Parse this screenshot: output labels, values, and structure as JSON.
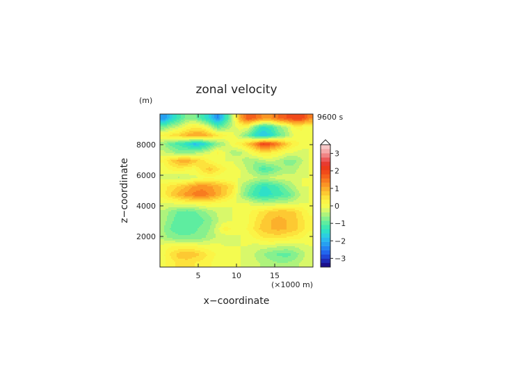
{
  "chart_data": {
    "type": "heatmap",
    "title": "zonal velocity",
    "xlabel": "x−coordinate",
    "ylabel": "z−coordinate",
    "x_unit": "(×1000 m)",
    "y_unit": "(m)",
    "time_label": "9600 s",
    "xlim": [
      0,
      20
    ],
    "ylim": [
      0,
      10000
    ],
    "x_ticks": [
      "5",
      "10",
      "15"
    ],
    "y_ticks": [
      "2000",
      "4000",
      "6000",
      "8000"
    ],
    "colorbar": {
      "ticks": [
        "−3",
        "−2",
        "−1",
        "0",
        "1",
        "2",
        "3"
      ],
      "levels": [
        -3.5,
        -3.25,
        -3,
        -2.75,
        -2.5,
        -2.25,
        -2,
        -1.75,
        -1.5,
        -1.25,
        -1,
        -0.75,
        -0.5,
        -0.25,
        0,
        0.25,
        0.5,
        0.75,
        1,
        1.25,
        1.5,
        1.75,
        2,
        2.25,
        2.5,
        2.75,
        3,
        3.25,
        3.5
      ],
      "colors": [
        "#1b0f8c",
        "#1e2ab4",
        "#1f47d8",
        "#2166ee",
        "#2384f2",
        "#26a0f0",
        "#2ab9ee",
        "#2ccfe0",
        "#2ee0c8",
        "#3fe8b0",
        "#5eeda0",
        "#86f08e",
        "#aef37c",
        "#d8f86a",
        "#f4fb50",
        "#fbf446",
        "#fde23c",
        "#fdc932",
        "#fcb02b",
        "#fb9524",
        "#f87b1f",
        "#f5611c",
        "#f14a1a",
        "#ec3a1a",
        "#e83a30",
        "#ec5a5a",
        "#f08484",
        "#f5aaaa",
        "#f8c8c8"
      ]
    },
    "grid": false,
    "legend": "right",
    "cell_size": [
      1,
      500
    ],
    "z_rows_top_to_bottom": [
      [
        -2.2,
        -1.6,
        -1.1,
        -0.6,
        -0.6,
        -1.1,
        -1.6,
        -2.3,
        -1.4,
        -0.3,
        1.2,
        2.0,
        1.8,
        1.4,
        1.4,
        1.8,
        2.0,
        2.2,
        2.2,
        1.6
      ],
      [
        -0.8,
        -0.4,
        -0.2,
        0.2,
        0.4,
        0.3,
        -0.2,
        -0.9,
        -0.6,
        -0.2,
        0.2,
        0.1,
        -0.8,
        -1.3,
        -1.1,
        -0.6,
        -0.3,
        0.3,
        0.3,
        0.1
      ],
      [
        0.4,
        0.6,
        0.8,
        1.1,
        1.3,
        1.3,
        1.0,
        0.6,
        0.3,
        0.1,
        -0.3,
        -0.8,
        -1.4,
        -1.8,
        -1.5,
        -0.9,
        -0.5,
        0.0,
        0.2,
        0.1
      ],
      [
        -0.5,
        -0.9,
        -1.1,
        -1.4,
        -1.8,
        -1.7,
        -1.1,
        -0.6,
        -0.3,
        0.2,
        0.4,
        0.9,
        1.5,
        2.3,
        2.0,
        1.5,
        0.9,
        0.4,
        0.2,
        0.0
      ],
      [
        -0.2,
        -0.4,
        -0.6,
        -0.6,
        -0.5,
        -0.3,
        -0.1,
        0.3,
        0.0,
        -0.4,
        -0.3,
        0.0,
        0.4,
        0.6,
        0.5,
        0.3,
        0.1,
        0.0,
        -0.1,
        0.0
      ],
      [
        0.3,
        0.8,
        1.1,
        1.2,
        0.9,
        0.6,
        0.3,
        0.1,
        0.0,
        0.0,
        -0.2,
        -0.4,
        -0.5,
        -0.3,
        -0.2,
        -0.3,
        -0.6,
        -0.6,
        -0.3,
        0.0
      ],
      [
        0.1,
        0.3,
        0.4,
        0.3,
        0.2,
        0.6,
        0.9,
        0.6,
        0.3,
        0.1,
        0.0,
        -0.3,
        -0.6,
        -1.1,
        -0.9,
        -0.6,
        -0.4,
        -0.4,
        -0.1,
        0.0
      ],
      [
        -0.1,
        -0.2,
        -0.3,
        -0.2,
        -0.1,
        0.1,
        0.2,
        0.1,
        0.0,
        0.0,
        0.0,
        -0.1,
        -0.2,
        -0.3,
        -0.2,
        -0.1,
        -0.1,
        -0.1,
        0.0,
        0.0
      ],
      [
        0.4,
        0.6,
        0.8,
        1.0,
        1.3,
        1.4,
        1.3,
        1.1,
        0.9,
        0.6,
        -0.2,
        -0.6,
        -1.0,
        -1.3,
        -1.2,
        -1.0,
        -0.6,
        -0.3,
        0.0,
        0.0
      ],
      [
        0.4,
        0.8,
        1.1,
        1.4,
        1.6,
        1.7,
        1.5,
        1.2,
        0.8,
        0.4,
        -0.3,
        -0.8,
        -1.2,
        -1.4,
        -1.3,
        -1.1,
        -1.0,
        -0.6,
        -0.2,
        0.0
      ],
      [
        0.0,
        0.0,
        0.1,
        0.2,
        0.2,
        0.3,
        0.3,
        0.2,
        0.1,
        0.0,
        0.0,
        0.0,
        -0.2,
        -0.3,
        -0.3,
        -0.2,
        -0.2,
        -0.1,
        0.0,
        0.0
      ],
      [
        -0.3,
        -0.6,
        -0.8,
        -0.9,
        -0.8,
        -0.6,
        -0.4,
        -0.2,
        -0.1,
        0.0,
        0.0,
        0.2,
        0.4,
        0.6,
        0.8,
        0.9,
        0.9,
        0.8,
        0.5,
        0.2
      ],
      [
        -0.4,
        -0.7,
        -0.9,
        -1.0,
        -0.9,
        -0.8,
        -0.6,
        -0.3,
        -0.1,
        0.0,
        0.0,
        0.2,
        0.5,
        0.8,
        1.0,
        1.1,
        1.0,
        0.9,
        0.6,
        0.3
      ],
      [
        -0.5,
        -0.8,
        -0.9,
        -0.9,
        -0.8,
        -0.7,
        -0.5,
        -0.1,
        0.4,
        0.2,
        0.0,
        0.3,
        0.6,
        0.9,
        1.0,
        1.1,
        1.0,
        0.9,
        0.6,
        0.3
      ],
      [
        -0.4,
        -0.6,
        -0.7,
        -0.7,
        -0.7,
        -0.6,
        -0.4,
        -0.2,
        -0.2,
        -0.1,
        0.0,
        0.1,
        0.3,
        0.5,
        0.6,
        0.6,
        0.5,
        0.4,
        0.3,
        0.1
      ],
      [
        0.1,
        0.2,
        0.2,
        0.2,
        0.2,
        0.1,
        0.1,
        0.1,
        0.0,
        0.0,
        0.0,
        0.0,
        -0.1,
        -0.1,
        -0.1,
        -0.2,
        -0.2,
        -0.2,
        -0.1,
        0.0
      ],
      [
        0.2,
        0.6,
        0.9,
        1.0,
        0.9,
        0.7,
        0.4,
        0.2,
        0.1,
        0.0,
        0.0,
        -0.1,
        -0.3,
        -0.5,
        -0.7,
        -0.8,
        -0.9,
        -0.7,
        -0.4,
        -0.1
      ],
      [
        0.2,
        0.4,
        0.6,
        0.6,
        0.5,
        0.4,
        0.3,
        0.1,
        0.0,
        0.0,
        0.0,
        -0.1,
        -0.2,
        -0.3,
        -0.4,
        -0.5,
        -0.5,
        -0.4,
        -0.2,
        -0.1
      ]
    ]
  }
}
